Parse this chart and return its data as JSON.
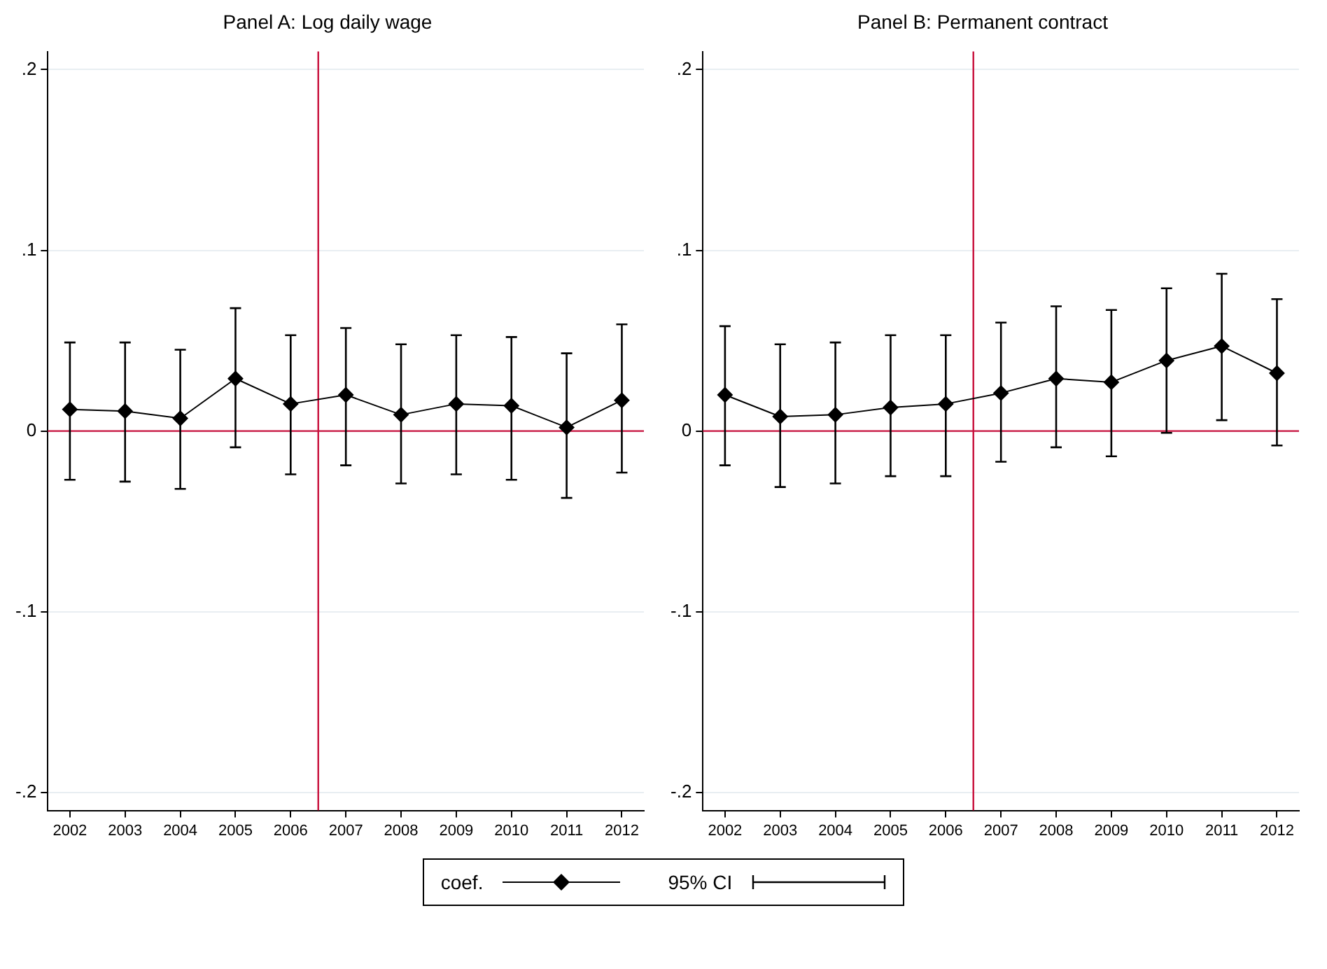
{
  "chart_data": [
    {
      "type": "line",
      "title": "Panel A: Log daily wage",
      "x": [
        2002,
        2003,
        2004,
        2005,
        2006,
        2007,
        2008,
        2009,
        2010,
        2011,
        2012
      ],
      "series": [
        {
          "name": "coef.",
          "color": "#000000",
          "values": [
            0.012,
            0.011,
            0.007,
            0.029,
            0.015,
            0.02,
            0.009,
            0.015,
            0.014,
            0.002,
            0.017
          ],
          "errors": [
            [
              -0.027,
              0.049
            ],
            [
              -0.028,
              0.049
            ],
            [
              -0.032,
              0.045
            ],
            [
              -0.009,
              0.068
            ],
            [
              -0.024,
              0.053
            ],
            [
              -0.019,
              0.057
            ],
            [
              -0.029,
              0.048
            ],
            [
              -0.024,
              0.053
            ],
            [
              -0.027,
              0.052
            ],
            [
              -0.037,
              0.043
            ],
            [
              -0.023,
              0.059
            ]
          ]
        }
      ],
      "xlim": [
        2001.6,
        2012.4
      ],
      "xticks": [
        2002,
        2003,
        2004,
        2005,
        2006,
        2007,
        2008,
        2009,
        2010,
        2011,
        2012
      ],
      "ylim": [
        -0.21,
        0.21
      ],
      "yticks": [
        {
          "value": -0.2,
          "label": "-.2"
        },
        {
          "value": -0.1,
          "label": "-.1"
        },
        {
          "value": 0,
          "label": "0"
        },
        {
          "value": 0.1,
          "label": ".1"
        },
        {
          "value": 0.2,
          "label": ".2"
        }
      ],
      "ref_lines": [
        {
          "axis": "x",
          "value": 2006.5,
          "color": "#c8103c"
        },
        {
          "axis": "y",
          "value": 0,
          "color": "#c8103c"
        }
      ],
      "grid": "y",
      "marker": "diamond",
      "line_style": "solid",
      "legend": "bottom",
      "annotations": [
        "95% CI"
      ]
    },
    {
      "type": "line",
      "title": "Panel B: Permanent contract",
      "x": [
        2002,
        2003,
        2004,
        2005,
        2006,
        2007,
        2008,
        2009,
        2010,
        2011,
        2012
      ],
      "series": [
        {
          "color": "#000000",
          "values": [
            0.02,
            0.008,
            0.009,
            0.013,
            0.015,
            0.021,
            0.029,
            0.027,
            0.039,
            0.047,
            0.032
          ],
          "errors": [
            [
              -0.019,
              0.058
            ],
            [
              -0.031,
              0.048
            ],
            [
              -0.029,
              0.049
            ],
            [
              -0.025,
              0.053
            ],
            [
              -0.025,
              0.053
            ],
            [
              -0.017,
              0.06
            ],
            [
              -0.009,
              0.069
            ],
            [
              -0.014,
              0.067
            ],
            [
              -0.001,
              0.079
            ],
            [
              0.006,
              0.087
            ],
            [
              -0.008,
              0.073
            ]
          ]
        }
      ],
      "xlim": [
        2001.6,
        2012.4
      ],
      "xticks": [
        2002,
        2003,
        2004,
        2005,
        2006,
        2007,
        2008,
        2009,
        2010,
        2011,
        2012
      ],
      "ylim": [
        -0.21,
        0.21
      ],
      "yticks": [
        {
          "value": -0.2,
          "label": "-.2"
        },
        {
          "value": -0.1,
          "label": "-.1"
        },
        {
          "value": 0,
          "label": "0"
        },
        {
          "value": 0.1,
          "label": ".1"
        },
        {
          "value": 0.2,
          "label": ".2"
        }
      ],
      "ref_lines": [
        {
          "axis": "x",
          "value": 2006.5,
          "color": "#c8103c"
        },
        {
          "axis": "y",
          "value": 0,
          "color": "#c8103c"
        }
      ],
      "grid": "y",
      "marker": "diamond",
      "line_style": "solid"
    }
  ]
}
